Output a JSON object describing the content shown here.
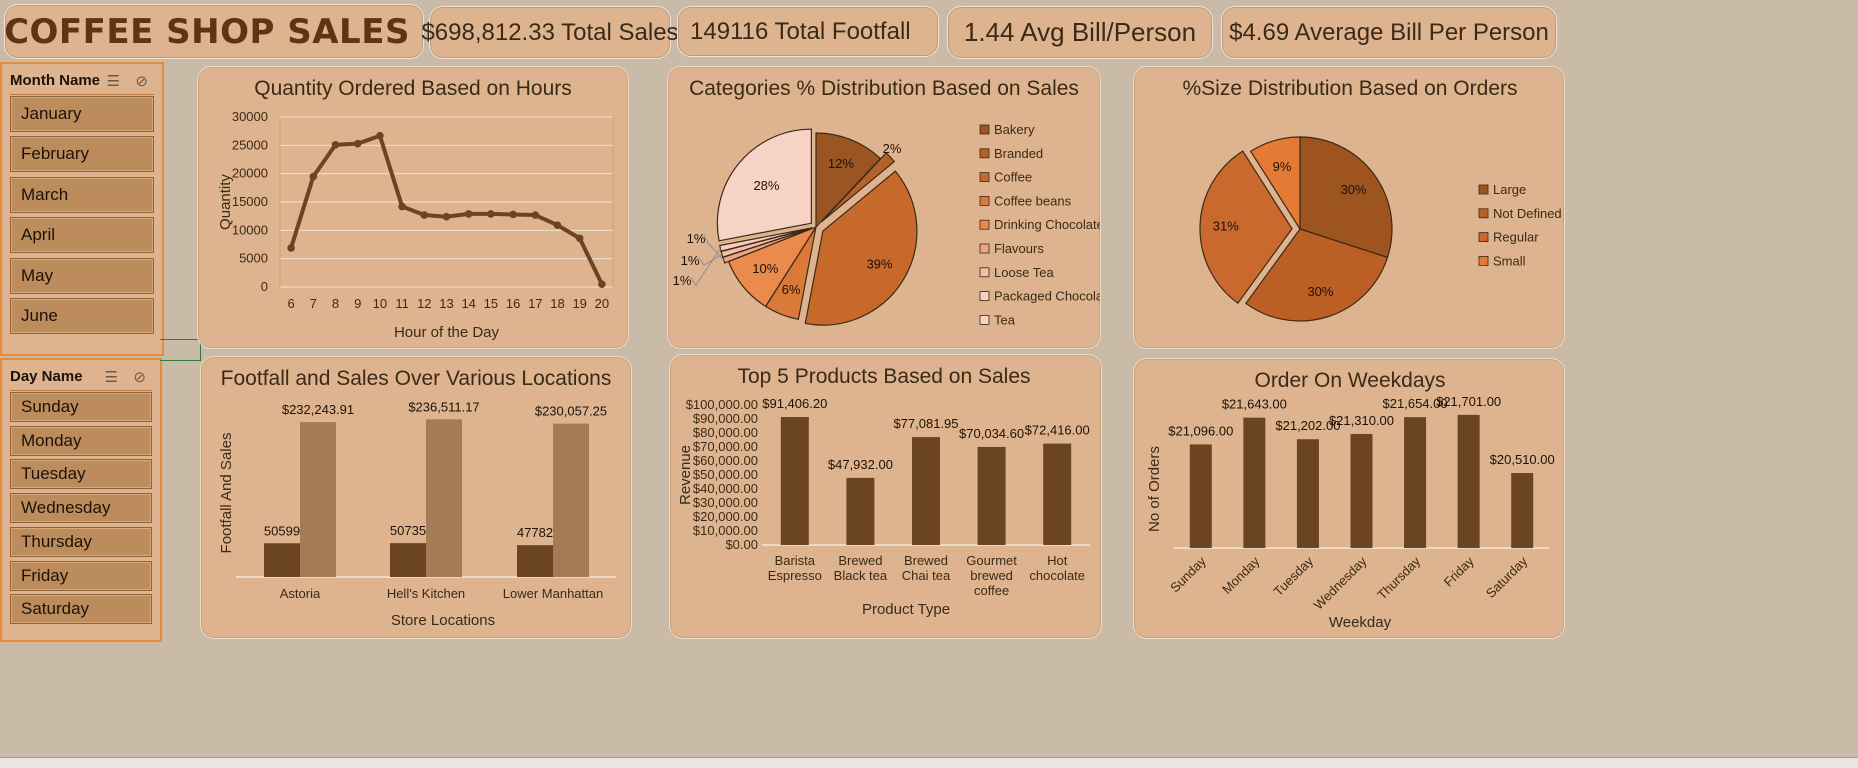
{
  "header": {
    "title": "COFFEE SHOP SALES",
    "cup_icon": "coffee-cup-icon"
  },
  "kpis": [
    "$698,812.33 Total Sales",
    "149116 Total Footfall",
    "1.44 Avg Bill/Person",
    "$4.69 Average Bill Per Person"
  ],
  "slicers": {
    "month": {
      "title": "Month Name",
      "items": [
        "January",
        "February",
        "March",
        "April",
        "May",
        "June"
      ]
    },
    "day": {
      "title": "Day Name",
      "items": [
        "Sunday",
        "Monday",
        "Tuesday",
        "Wednesday",
        "Thursday",
        "Friday",
        "Saturday"
      ]
    }
  },
  "colors": {
    "dark_brown": "#6b4423",
    "light_brown": "#a57b55",
    "line": "#6b4423",
    "panel": "#ddb48f"
  },
  "chart_data": [
    {
      "type": "line",
      "title": "Quantity Ordered Based on Hours",
      "xlabel": "Hour of the Day",
      "ylabel": "Quantity",
      "x": [
        6,
        7,
        8,
        9,
        10,
        11,
        12,
        13,
        14,
        15,
        16,
        17,
        18,
        19,
        20
      ],
      "values": [
        6900,
        19500,
        25100,
        25300,
        26700,
        14200,
        12700,
        12400,
        12900,
        12900,
        12800,
        12700,
        10900,
        8600,
        500
      ],
      "yticks": [
        "0",
        "5000",
        "10000",
        "15000",
        "20000",
        "25000",
        "30000"
      ],
      "ylim": [
        0,
        30000
      ],
      "grid": true
    },
    {
      "type": "pie",
      "title": "Categories % Distribution Based on Sales",
      "labels": [
        "Bakery",
        "Branded",
        "Coffee",
        "Coffee beans",
        "Drinking Chocolate",
        "Flavours",
        "Loose Tea",
        "Packaged Chocolate",
        "Tea"
      ],
      "values": [
        12,
        2,
        39,
        6,
        10,
        1,
        1,
        1,
        28
      ],
      "data_labels": [
        "12%",
        "2%",
        "39%",
        "6%",
        "10%",
        "1%",
        "1%",
        "1%",
        "28%"
      ],
      "colors": [
        "#9a5522",
        "#b5612a",
        "#c8692c",
        "#d97a38",
        "#ea8a4c",
        "#efa583",
        "#f4bda5",
        "#f7cdbd",
        "#f7d3c6"
      ],
      "legend": "right"
    },
    {
      "type": "pie",
      "title": "%Size Distribution Based on Orders",
      "labels": [
        "Large",
        "Not Defined",
        "Regular",
        "Small"
      ],
      "values": [
        30,
        30,
        31,
        9
      ],
      "data_labels": [
        "30%",
        "30%",
        "31%",
        "9%"
      ],
      "colors": [
        "#9d541f",
        "#bc5f25",
        "#c9692d",
        "#e57a35"
      ],
      "legend": "right"
    },
    {
      "type": "bar",
      "title": "Footfall and Sales Over Various Locations",
      "xlabel": "Store Locations",
      "ylabel": "Footfall And Sales",
      "categories": [
        "Astoria",
        "Hell's Kitchen",
        "Lower Manhattan"
      ],
      "series": [
        {
          "values": [
            50599,
            50735,
            47782
          ],
          "labels": [
            "50599",
            "50735",
            "47782"
          ]
        },
        {
          "values": [
            232243.91,
            236511.17,
            230057.25
          ],
          "labels": [
            "$232,243.91",
            "$236,511.17",
            "$230,057.25"
          ]
        }
      ]
    },
    {
      "type": "bar",
      "title": "Top 5 Products Based on Sales",
      "xlabel": "Product Type",
      "ylabel": "Revenue",
      "categories": [
        [
          "Barista",
          "Espresso"
        ],
        [
          "Brewed",
          "Black tea"
        ],
        [
          "Brewed",
          "Chai tea"
        ],
        [
          "Gourmet",
          "brewed",
          "coffee"
        ],
        [
          "Hot",
          "chocolate"
        ]
      ],
      "values": [
        91406.2,
        47932.0,
        77081.95,
        70034.6,
        72416.0
      ],
      "labels": [
        "$91,406.20",
        "$47,932.00",
        "$77,081.95",
        "$70,034.60",
        "$72,416.00"
      ],
      "yticks": [
        "$0.00",
        "$10,000.00",
        "$20,000.00",
        "$30,000.00",
        "$40,000.00",
        "$50,000.00",
        "$60,000.00",
        "$70,000.00",
        "$80,000.00",
        "$90,000.00",
        "$100,000.00"
      ],
      "ylim": [
        0,
        100000
      ]
    },
    {
      "type": "bar",
      "title": "Order On Weekdays",
      "xlabel": "Weekday",
      "ylabel": "No of Orders",
      "categories": [
        "Sunday",
        "Monday",
        "Tuesday",
        "Wednesday",
        "Thursday",
        "Friday",
        "Saturday"
      ],
      "values": [
        21096,
        21643,
        21202,
        21310,
        21654,
        21701,
        20510
      ],
      "labels": [
        "$21,096.00",
        "$21,643.00",
        "$21,202.00",
        "$21,310.00",
        "$21,654.00",
        "$21,701.00",
        "$20,510.00"
      ]
    }
  ]
}
